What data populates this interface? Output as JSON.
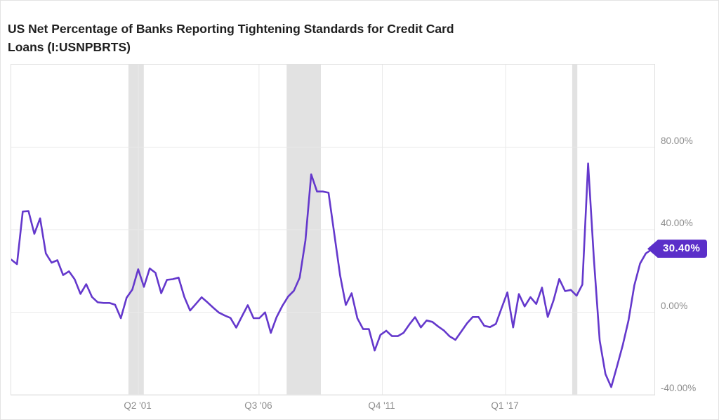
{
  "header": {
    "title_line1": "US Net Percentage of Banks Reporting Tightening Standards for Credit Card",
    "title_line2": "Loans (I:USNPBRTS)"
  },
  "colors": {
    "accent": "#5B2FC9",
    "line": "#6438CC",
    "grid": "#e9e9e9",
    "band": "#e2e2e2",
    "plot_border": "#e0e0e0",
    "axis_text": "#8d8d8d",
    "title_text": "#202020",
    "badge_text": "#ffffff"
  },
  "chart_data": {
    "type": "line",
    "title": "US Net Percentage of Banks Reporting Tightening Standards for Credit Card Loans (I:USNPBRTS)",
    "unit": "%",
    "frequency": "quarterly (values estimated from plot pixels)",
    "grid": "on",
    "legend": "none",
    "ylim": [
      -40,
      120
    ],
    "y_ticks": [
      {
        "label": "80.00%",
        "value": 80
      },
      {
        "label": "40.00%",
        "value": 40
      },
      {
        "label": "0.00%",
        "value": 0
      },
      {
        "label": "-40.00%",
        "value": -40
      }
    ],
    "x_ticks": [
      {
        "label": "Q2 '01",
        "pos": 0.1985
      },
      {
        "label": "Q3 '06",
        "pos": 0.387
      },
      {
        "label": "Q4 '11",
        "pos": 0.5795
      },
      {
        "label": "Q1 '17",
        "pos": 0.772
      }
    ],
    "recession_bands": [
      {
        "start": 0.183,
        "end": 0.207
      },
      {
        "start": 0.43,
        "end": 0.4835
      },
      {
        "start": 0.876,
        "end": 0.884
      }
    ],
    "latest": {
      "label": "30.40%",
      "value": 30.4
    },
    "values": [
      25.5,
      23.3,
      48.8,
      49,
      38,
      45.5,
      28.5,
      24,
      25.2,
      18,
      19.8,
      15.9,
      8.9,
      13.6,
      7.4,
      4.8,
      4.5,
      4.5,
      3.6,
      -2.9,
      7,
      11,
      20.8,
      12.3,
      21.2,
      19.1,
      9.2,
      15.7,
      16,
      16.8,
      7.4,
      0.8,
      4,
      7.2,
      4.8,
      2.2,
      -0.2,
      -1.6,
      -2.8,
      -7.5,
      -2,
      3.4,
      -2.9,
      -2.9,
      -0.1,
      -10,
      -2.4,
      3.1,
      7.6,
      10.4,
      16.7,
      34.8,
      66.8,
      58.5,
      58.5,
      57.9,
      38,
      18,
      3.5,
      9.2,
      -3,
      -8.2,
      -8.2,
      -18.6,
      -11,
      -9,
      -11.6,
      -11.6,
      -10,
      -6,
      -2.4,
      -7.4,
      -4,
      -4.7,
      -6.9,
      -8.9,
      -11.7,
      -13.4,
      -9.4,
      -5.4,
      -2.3,
      -2.3,
      -6.6,
      -7.2,
      -5.7,
      2,
      9.6,
      -7.4,
      8.8,
      2.8,
      7.3,
      4,
      11.9,
      -2.3,
      5.7,
      16.1,
      10.2,
      10.8,
      8,
      13.4,
      72.1,
      25.9,
      -13.8,
      -30,
      -36.3,
      -26.3,
      -16,
      -4,
      13,
      23.6,
      28.5,
      30.4
    ]
  }
}
